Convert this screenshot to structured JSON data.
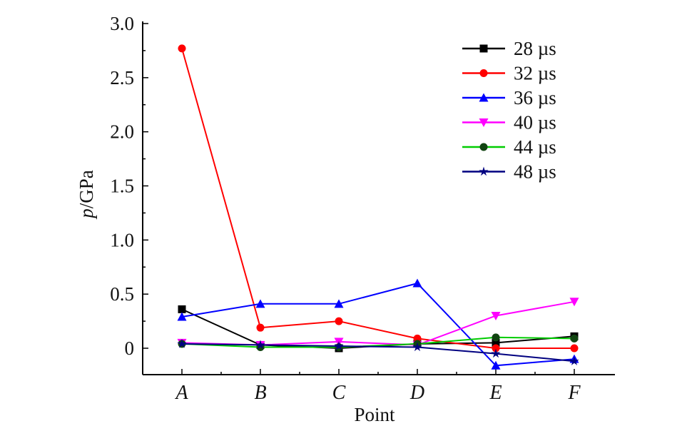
{
  "chart_data": {
    "type": "line",
    "xlabel": "Point",
    "ylabel_italic": "p",
    "ylabel_rest": "/GPa",
    "categories": [
      "A",
      "B",
      "C",
      "D",
      "E",
      "F"
    ],
    "ylim": [
      -0.25,
      3.0
    ],
    "yticks": [
      {
        "value": 0,
        "label": "0"
      },
      {
        "value": 0.5,
        "label": "0.5"
      },
      {
        "value": 1.0,
        "label": "1.0"
      },
      {
        "value": 1.5,
        "label": "1.5"
      },
      {
        "value": 2.0,
        "label": "2.0"
      },
      {
        "value": 2.5,
        "label": "2.5"
      },
      {
        "value": 3.0,
        "label": "3.0"
      }
    ],
    "legend_position": "top-right",
    "grid": false,
    "series": [
      {
        "name": "28 µs",
        "color": "#000000",
        "marker": "square",
        "values": [
          0.36,
          0.03,
          0.0,
          0.04,
          0.05,
          0.11
        ]
      },
      {
        "name": "32 µs",
        "color": "#ff0000",
        "marker": "circle",
        "values": [
          2.77,
          0.19,
          0.25,
          0.09,
          0.0,
          0.0
        ]
      },
      {
        "name": "36 µs",
        "color": "#0000ff",
        "marker": "triangle-up",
        "values": [
          0.29,
          0.41,
          0.41,
          0.6,
          -0.16,
          -0.1
        ]
      },
      {
        "name": "40 µs",
        "color": "#ff00ff",
        "marker": "triangle-down",
        "values": [
          0.05,
          0.03,
          0.06,
          0.03,
          0.3,
          0.43
        ]
      },
      {
        "name": "44 µs",
        "color": "#00cc00",
        "marker": "diamond",
        "values": [
          0.04,
          0.01,
          0.01,
          0.04,
          0.1,
          0.09
        ]
      },
      {
        "name": "48 µs",
        "color": "#000080",
        "marker": "star",
        "values": [
          0.04,
          0.03,
          0.02,
          0.01,
          -0.05,
          -0.12
        ]
      }
    ]
  }
}
